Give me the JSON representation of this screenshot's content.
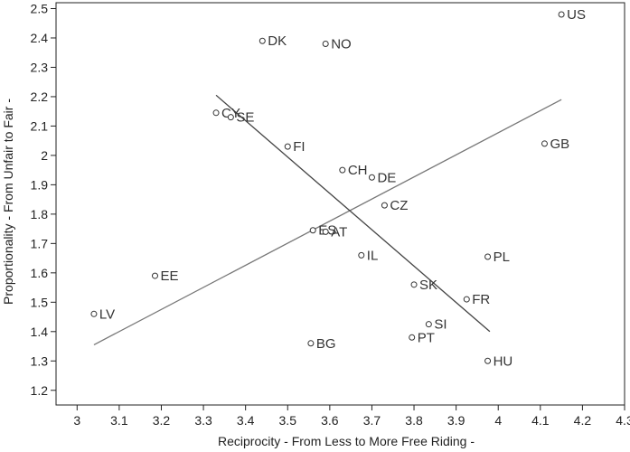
{
  "chart_data": {
    "type": "scatter",
    "xlabel": "Reciprocity - From Less to More Free Riding -",
    "ylabel": "Proportionality - From Unfair to Fair -",
    "xlim": [
      2.95,
      4.3
    ],
    "ylim": [
      1.15,
      2.52
    ],
    "xticks": [
      "3",
      "3.1",
      "3.2",
      "3.3",
      "3.4",
      "3.5",
      "3.6",
      "3.7",
      "3.8",
      "3.9",
      "4",
      "4.1",
      "4.2",
      "4.3"
    ],
    "yticks": [
      "1.2",
      "1.3",
      "1.4",
      "1.5",
      "1.6",
      "1.7",
      "1.8",
      "1.9",
      "2",
      "2.1",
      "2.2",
      "2.3",
      "2.4",
      "2.5"
    ],
    "grid": false,
    "points": [
      {
        "label": "US",
        "x": 4.15,
        "y": 2.48
      },
      {
        "label": "DK",
        "x": 3.44,
        "y": 2.39
      },
      {
        "label": "NO",
        "x": 3.59,
        "y": 2.38
      },
      {
        "label": "CY",
        "x": 3.33,
        "y": 2.145
      },
      {
        "label": "SE",
        "x": 3.365,
        "y": 2.13
      },
      {
        "label": "FI",
        "x": 3.5,
        "y": 2.03
      },
      {
        "label": "GB",
        "x": 4.11,
        "y": 2.04
      },
      {
        "label": "CH",
        "x": 3.63,
        "y": 1.95
      },
      {
        "label": "DE",
        "x": 3.7,
        "y": 1.925
      },
      {
        "label": "CZ",
        "x": 3.73,
        "y": 1.83
      },
      {
        "label": "ES",
        "x": 3.56,
        "y": 1.745
      },
      {
        "label": "AT",
        "x": 3.59,
        "y": 1.74
      },
      {
        "label": "IL",
        "x": 3.675,
        "y": 1.66
      },
      {
        "label": "PL",
        "x": 3.975,
        "y": 1.655
      },
      {
        "label": "EE",
        "x": 3.185,
        "y": 1.59
      },
      {
        "label": "SK",
        "x": 3.8,
        "y": 1.56
      },
      {
        "label": "FR",
        "x": 3.925,
        "y": 1.51
      },
      {
        "label": "LV",
        "x": 3.04,
        "y": 1.46
      },
      {
        "label": "SI",
        "x": 3.835,
        "y": 1.425
      },
      {
        "label": "PT",
        "x": 3.795,
        "y": 1.38
      },
      {
        "label": "BG",
        "x": 3.555,
        "y": 1.36
      },
      {
        "label": "HU",
        "x": 3.975,
        "y": 1.3
      }
    ],
    "lines": [
      {
        "x": [
          3.04,
          4.15
        ],
        "y": [
          1.355,
          2.19
        ],
        "color": "#777777"
      },
      {
        "x": [
          3.33,
          3.98
        ],
        "y": [
          2.205,
          1.4
        ],
        "color": "#444444"
      }
    ]
  }
}
